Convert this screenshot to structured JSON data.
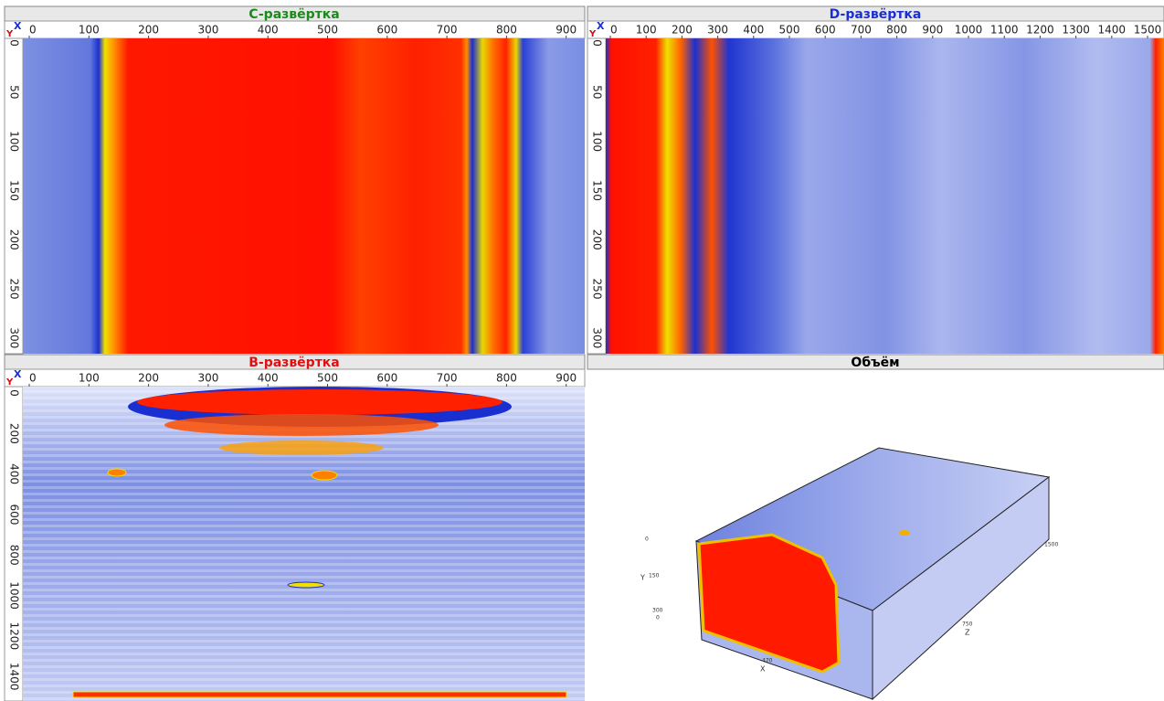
{
  "panels": [
    {
      "title": "C-развёртка",
      "corner_x": "X",
      "corner_y": "Y",
      "x_ticks": [
        0,
        100,
        200,
        300,
        400,
        500,
        600,
        700,
        800,
        900
      ],
      "y_ticks": [
        0,
        50,
        100,
        150,
        200,
        250,
        300
      ]
    },
    {
      "title": "D-развёртка",
      "corner_x": "X",
      "corner_y": "Y",
      "x_ticks": [
        0,
        100,
        200,
        300,
        400,
        500,
        600,
        700,
        800,
        900,
        1000,
        1100,
        1200,
        1300,
        1400,
        1500
      ],
      "y_ticks": [
        0,
        50,
        100,
        150,
        200,
        250,
        300
      ]
    },
    {
      "title": "B-развёртка",
      "corner_x": "X",
      "corner_y": "Y",
      "x_ticks": [
        0,
        100,
        200,
        300,
        400,
        500,
        600,
        700,
        800,
        900
      ],
      "y_ticks": [
        0,
        200,
        400,
        600,
        800,
        1000,
        1200,
        1400
      ]
    }
  ],
  "volume": {
    "title": "Объём",
    "labels": [
      "0",
      "Y",
      "150",
      "300",
      "0",
      "470",
      "X",
      "750",
      "Z",
      "1500"
    ]
  }
}
